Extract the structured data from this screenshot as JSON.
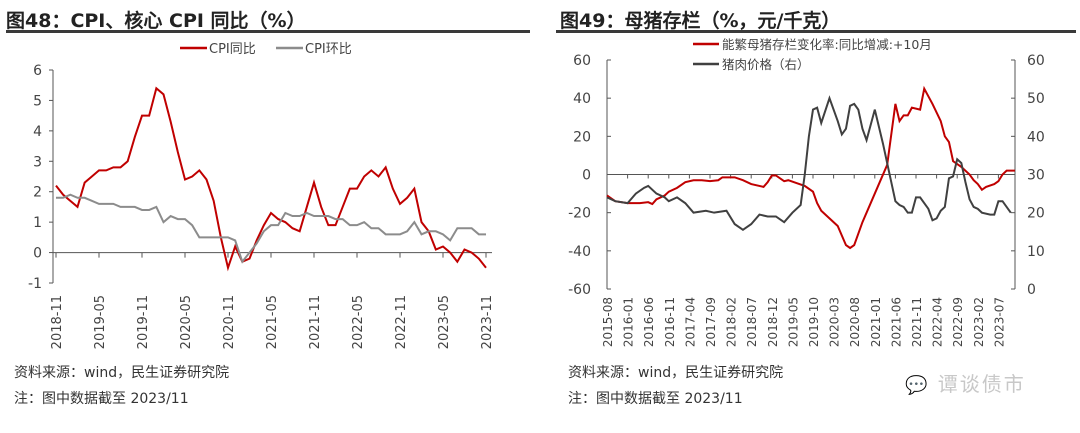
{
  "left_title": "图48：CPI、核心 CPI 同比（%）",
  "right_title": "图49：母猪存栏（%，元/千克）",
  "left_source": "资料来源：wind，民生证券研究院",
  "left_note": "注：图中数据截至 2023/11",
  "right_source": "资料来源：wind，民生证券研究院",
  "right_note": "注：图中数据截至 2023/11",
  "watermark": "谭谈债市",
  "chart_data": [
    {
      "type": "line",
      "title": "图48：CPI、核心 CPI 同比（%）",
      "start": "2018-11",
      "xticks": [
        "2018-11",
        "2019-05",
        "2019-11",
        "2020-05",
        "2020-11",
        "2021-05",
        "2021-11",
        "2022-05",
        "2022-11",
        "2023-05",
        "2023-11"
      ],
      "ylim": [
        -1,
        6
      ],
      "yticks": [
        "-1",
        "0",
        "1",
        "2",
        "3",
        "4",
        "5",
        "6"
      ],
      "legend": "top",
      "series": [
        {
          "name": "CPI同比",
          "color": "#c00000",
          "values": [
            2.2,
            1.9,
            1.7,
            1.5,
            2.3,
            2.5,
            2.7,
            2.7,
            2.8,
            2.8,
            3.0,
            3.8,
            4.5,
            4.5,
            5.4,
            5.2,
            4.3,
            3.3,
            2.4,
            2.5,
            2.7,
            2.4,
            1.7,
            0.5,
            -0.5,
            0.2,
            -0.3,
            -0.2,
            0.4,
            0.9,
            1.3,
            1.1,
            1.0,
            0.8,
            0.7,
            1.5,
            2.3,
            1.5,
            0.9,
            0.9,
            1.5,
            2.1,
            2.1,
            2.5,
            2.7,
            2.5,
            2.8,
            2.1,
            1.6,
            1.8,
            2.1,
            1.0,
            0.7,
            0.1,
            0.2,
            0.0,
            -0.3,
            0.1,
            0.0,
            -0.2,
            -0.5
          ]
        },
        {
          "name": "CPI环比",
          "color": "#8c8c8c",
          "values": [
            1.8,
            1.8,
            1.9,
            1.8,
            1.8,
            1.7,
            1.6,
            1.6,
            1.6,
            1.5,
            1.5,
            1.5,
            1.4,
            1.4,
            1.5,
            1.0,
            1.2,
            1.1,
            1.1,
            0.9,
            0.5,
            0.5,
            0.5,
            0.5,
            0.5,
            0.4,
            -0.3,
            0.0,
            0.3,
            0.7,
            0.9,
            0.9,
            1.3,
            1.2,
            1.2,
            1.3,
            1.2,
            1.2,
            1.2,
            1.1,
            1.1,
            0.9,
            0.9,
            1.0,
            0.8,
            0.8,
            0.6,
            0.6,
            0.6,
            0.7,
            1.0,
            0.6,
            0.7,
            0.7,
            0.6,
            0.4,
            0.8,
            0.8,
            0.8,
            0.6,
            0.6
          ]
        }
      ]
    },
    {
      "type": "line",
      "title": "图49：母猪存栏（%，元/千克）",
      "xticks": [
        "2015-08",
        "2016-01",
        "2016-06",
        "2016-11",
        "2017-04",
        "2017-09",
        "2018-02",
        "2018-07",
        "2018-12",
        "2019-05",
        "2019-10",
        "2020-03",
        "2020-08",
        "2021-01",
        "2021-06",
        "2021-11",
        "2022-04",
        "2022-09",
        "2023-02",
        "2023-07"
      ],
      "ylim_left": [
        -60,
        60
      ],
      "yticks_left": [
        "-60",
        "-40",
        "-20",
        "0",
        "20",
        "40",
        "60"
      ],
      "ylim_right": [
        0,
        60
      ],
      "yticks_right": [
        "0",
        "10",
        "20",
        "30",
        "40",
        "50",
        "60"
      ],
      "legend": "top",
      "series": [
        {
          "name": "能繁母猪存栏变化率:同比增减:+10月",
          "axis": "left",
          "color": "#c00000",
          "points": [
            [
              "2015-08",
              -11
            ],
            [
              "2015-10",
              -14
            ],
            [
              "2016-01",
              -15
            ],
            [
              "2016-04",
              -15
            ],
            [
              "2016-06",
              -14.5
            ],
            [
              "2016-07",
              -15.5
            ],
            [
              "2016-08",
              -13
            ],
            [
              "2016-10",
              -11
            ],
            [
              "2016-11",
              -9
            ],
            [
              "2017-01",
              -7
            ],
            [
              "2017-03",
              -4
            ],
            [
              "2017-05",
              -3
            ],
            [
              "2017-07",
              -3
            ],
            [
              "2017-09",
              -3.5
            ],
            [
              "2017-11",
              -3
            ],
            [
              "2017-12",
              -1.5
            ],
            [
              "2018-03",
              -1.5
            ],
            [
              "2018-05",
              -3
            ],
            [
              "2018-07",
              -5
            ],
            [
              "2018-10",
              -6.5
            ],
            [
              "2018-11",
              -4
            ],
            [
              "2018-12",
              -0.5
            ],
            [
              "2019-01",
              -0.5
            ],
            [
              "2019-03",
              -3.5
            ],
            [
              "2019-04",
              -3
            ],
            [
              "2019-06",
              -4.5
            ],
            [
              "2019-08",
              -6
            ],
            [
              "2019-10",
              -9
            ],
            [
              "2019-11",
              -15
            ],
            [
              "2019-12",
              -19
            ],
            [
              "2020-02",
              -23
            ],
            [
              "2020-04",
              -27
            ],
            [
              "2020-06",
              -37
            ],
            [
              "2020-07",
              -38.5
            ],
            [
              "2020-08",
              -37
            ],
            [
              "2020-10",
              -25
            ],
            [
              "2021-01",
              -10
            ],
            [
              "2021-04",
              5
            ],
            [
              "2021-06",
              37
            ],
            [
              "2021-07",
              28
            ],
            [
              "2021-08",
              31
            ],
            [
              "2021-09",
              31
            ],
            [
              "2021-10",
              35
            ],
            [
              "2021-12",
              34
            ],
            [
              "2022-01",
              45
            ],
            [
              "2022-03",
              37
            ],
            [
              "2022-05",
              28
            ],
            [
              "2022-06",
              20
            ],
            [
              "2022-07",
              17
            ],
            [
              "2022-08",
              7
            ],
            [
              "2022-10",
              4
            ],
            [
              "2022-12",
              0
            ],
            [
              "2023-01",
              -3
            ],
            [
              "2023-02",
              -5
            ],
            [
              "2023-03",
              -8
            ],
            [
              "2023-04",
              -6.5
            ],
            [
              "2023-06",
              -5
            ],
            [
              "2023-07",
              -3.5
            ],
            [
              "2023-08",
              0
            ],
            [
              "2023-09",
              2
            ],
            [
              "2023-11",
              2
            ]
          ]
        },
        {
          "name": "猪肉价格（右）",
          "axis": "right",
          "color": "#404040",
          "points": [
            [
              "2015-08",
              24
            ],
            [
              "2015-10",
              23
            ],
            [
              "2016-01",
              22.5
            ],
            [
              "2016-03",
              25
            ],
            [
              "2016-05",
              26.5
            ],
            [
              "2016-06",
              27
            ],
            [
              "2016-08",
              25
            ],
            [
              "2016-10",
              24
            ],
            [
              "2016-11",
              23
            ],
            [
              "2017-01",
              24
            ],
            [
              "2017-03",
              22.5
            ],
            [
              "2017-05",
              20
            ],
            [
              "2017-08",
              20.5
            ],
            [
              "2017-10",
              20
            ],
            [
              "2018-01",
              20.5
            ],
            [
              "2018-03",
              17
            ],
            [
              "2018-05",
              15.5
            ],
            [
              "2018-07",
              17
            ],
            [
              "2018-09",
              19.5
            ],
            [
              "2018-11",
              19
            ],
            [
              "2019-01",
              19
            ],
            [
              "2019-03",
              17.5
            ],
            [
              "2019-05",
              20
            ],
            [
              "2019-07",
              22
            ],
            [
              "2019-08",
              30
            ],
            [
              "2019-09",
              40
            ],
            [
              "2019-10",
              47
            ],
            [
              "2019-11",
              47.5
            ],
            [
              "2019-12",
              43.5
            ],
            [
              "2020-02",
              50
            ],
            [
              "2020-04",
              44
            ],
            [
              "2020-05",
              40.5
            ],
            [
              "2020-06",
              42
            ],
            [
              "2020-07",
              48
            ],
            [
              "2020-08",
              48.5
            ],
            [
              "2020-09",
              47
            ],
            [
              "2020-10",
              42
            ],
            [
              "2020-11",
              39
            ],
            [
              "2021-01",
              47
            ],
            [
              "2021-03",
              38
            ],
            [
              "2021-06",
              23
            ],
            [
              "2021-07",
              22
            ],
            [
              "2021-08",
              21.5
            ],
            [
              "2021-09",
              20
            ],
            [
              "2021-10",
              20
            ],
            [
              "2021-11",
              24
            ],
            [
              "2021-12",
              24
            ],
            [
              "2022-02",
              21
            ],
            [
              "2022-03",
              18
            ],
            [
              "2022-04",
              18.5
            ],
            [
              "2022-05",
              20.5
            ],
            [
              "2022-06",
              21.5
            ],
            [
              "2022-07",
              29
            ],
            [
              "2022-08",
              29.5
            ],
            [
              "2022-09",
              34
            ],
            [
              "2022-10",
              33
            ],
            [
              "2022-11",
              28
            ],
            [
              "2022-12",
              23.5
            ],
            [
              "2023-01",
              21.5
            ],
            [
              "2023-02",
              21
            ],
            [
              "2023-03",
              20
            ],
            [
              "2023-05",
              19.5
            ],
            [
              "2023-06",
              19.5
            ],
            [
              "2023-07",
              23
            ],
            [
              "2023-08",
              23
            ],
            [
              "2023-10",
              20
            ]
          ]
        }
      ]
    }
  ]
}
